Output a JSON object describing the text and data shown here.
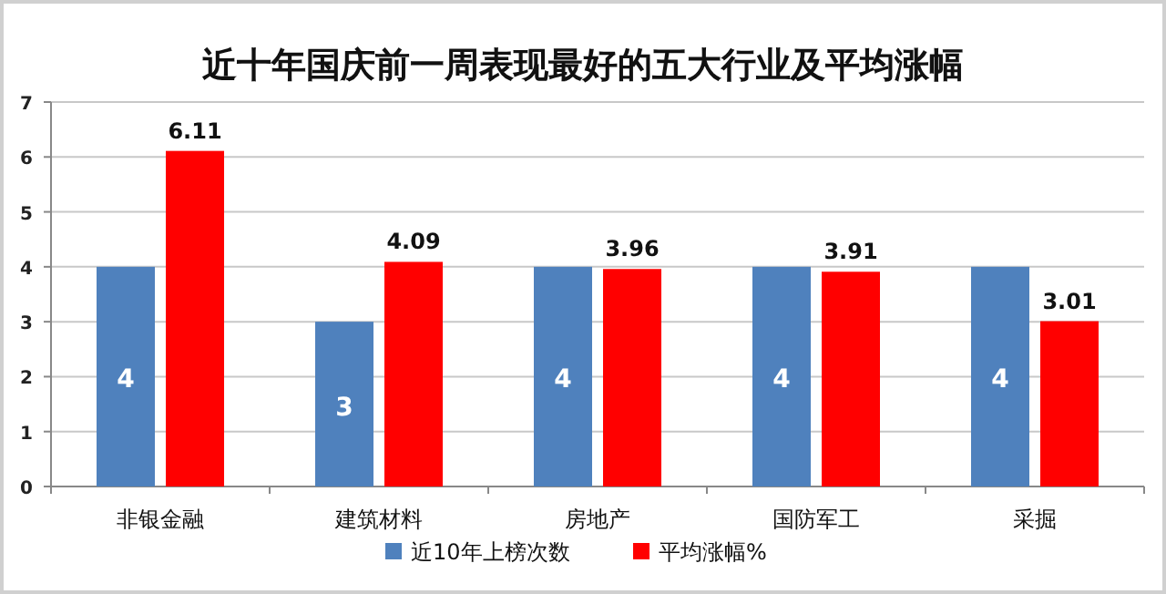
{
  "chart_data": {
    "type": "bar",
    "title": "近十年国庆前一周表现最好的五大行业及平均涨幅",
    "categories": [
      "非银金融",
      "建筑材料",
      "房地产",
      "国防军工",
      "采掘"
    ],
    "series": [
      {
        "name": "近10年上榜次数",
        "color": "#4f81bd",
        "values": [
          4,
          3,
          4,
          4,
          4
        ]
      },
      {
        "name": "平均涨幅%",
        "color": "#ff0000",
        "values": [
          6.11,
          4.09,
          3.96,
          3.91,
          3.01
        ]
      }
    ],
    "ylim": [
      0,
      7
    ],
    "yticks": [
      0,
      1,
      2,
      3,
      4,
      5,
      6,
      7
    ],
    "grid": "y",
    "legend": "bottom",
    "data_labels": true
  }
}
